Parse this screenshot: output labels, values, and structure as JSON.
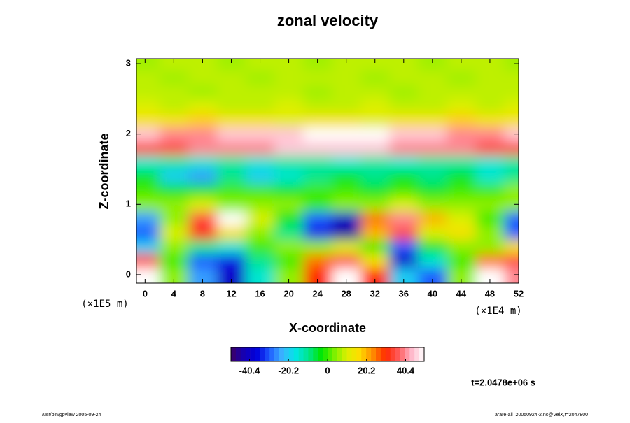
{
  "chart_data": {
    "type": "heatmap",
    "title": "zonal velocity",
    "x_label": "X-coordinate",
    "y_label": "Z-coordinate",
    "x_unit": "(×1E4 m)",
    "y_unit": "(×1E5 m)",
    "time_label": "t=2.0478e+06 s",
    "footer_left": "/usr/bin/gpview 2005-09-24",
    "footer_right": "arare-all_20050924-2.nc@VelX,t=2047800",
    "xlim": [
      -1.2,
      52
    ],
    "ylim": [
      -0.12,
      3.07
    ],
    "xticks": [
      0,
      4,
      8,
      12,
      16,
      20,
      24,
      28,
      32,
      36,
      40,
      44,
      48,
      52
    ],
    "yticks": [
      0,
      1,
      2,
      3
    ],
    "x": [
      0,
      4,
      8,
      12,
      16,
      20,
      24,
      28,
      32,
      36,
      40,
      44,
      48,
      52
    ],
    "y": [
      0,
      0.2,
      0.4,
      0.6,
      0.8,
      1.0,
      1.2,
      1.4,
      1.6,
      1.8,
      2.0,
      2.2,
      2.4,
      2.6,
      2.8,
      3.0
    ],
    "z": [
      [
        50,
        5,
        -25,
        -40,
        -15,
        5,
        30,
        50,
        30,
        -20,
        -30,
        5,
        50,
        40
      ],
      [
        35,
        0,
        -30,
        -35,
        -10,
        0,
        25,
        35,
        15,
        -40,
        -15,
        0,
        25,
        35
      ],
      [
        -20,
        5,
        -10,
        -15,
        0,
        5,
        5,
        10,
        0,
        -30,
        -5,
        5,
        5,
        15
      ],
      [
        -30,
        10,
        30,
        15,
        5,
        -10,
        -35,
        -45,
        20,
        35,
        10,
        15,
        5,
        -30
      ],
      [
        -25,
        5,
        35,
        50,
        10,
        -5,
        -30,
        -40,
        25,
        40,
        20,
        10,
        0,
        -30
      ],
      [
        5,
        5,
        10,
        5,
        5,
        5,
        0,
        5,
        5,
        10,
        5,
        5,
        5,
        5
      ],
      [
        0,
        -5,
        -5,
        0,
        0,
        -5,
        0,
        0,
        -5,
        0,
        -5,
        0,
        0,
        5
      ],
      [
        -5,
        -20,
        -25,
        -10,
        -20,
        -15,
        -10,
        -5,
        -10,
        -5,
        -10,
        -5,
        -15,
        -10
      ],
      [
        -15,
        -12,
        -15,
        -12,
        -15,
        -12,
        -12,
        -15,
        -12,
        -15,
        -12,
        -12,
        -15,
        -12
      ],
      [
        35,
        35,
        40,
        40,
        40,
        45,
        45,
        45,
        45,
        40,
        40,
        40,
        35,
        35
      ],
      [
        45,
        40,
        40,
        45,
        45,
        45,
        50,
        50,
        50,
        45,
        45,
        40,
        40,
        45
      ],
      [
        15,
        15,
        18,
        15,
        15,
        12,
        15,
        15,
        12,
        15,
        15,
        18,
        15,
        15
      ],
      [
        10,
        8,
        10,
        8,
        8,
        10,
        8,
        8,
        10,
        8,
        8,
        10,
        8,
        10
      ],
      [
        8,
        8,
        6,
        8,
        8,
        8,
        6,
        8,
        8,
        6,
        8,
        8,
        8,
        8
      ],
      [
        8,
        6,
        8,
        8,
        6,
        8,
        8,
        8,
        6,
        8,
        8,
        6,
        8,
        8
      ],
      [
        6,
        8,
        8,
        6,
        8,
        8,
        6,
        8,
        8,
        8,
        6,
        8,
        8,
        6
      ]
    ],
    "clim": [
      -50,
      50
    ],
    "cticks": [
      -40.4,
      -20.2,
      0,
      20.2,
      40.4
    ],
    "colorscale": [
      "#3c0064",
      "#1400b4",
      "#0000dc",
      "#1e5aff",
      "#3cb4ff",
      "#00e6e6",
      "#00e68c",
      "#00e600",
      "#78f000",
      "#dcf000",
      "#ffdc00",
      "#ff8c00",
      "#ff2800",
      "#ff5a5a",
      "#ffb4c8",
      "#ffffff"
    ]
  }
}
